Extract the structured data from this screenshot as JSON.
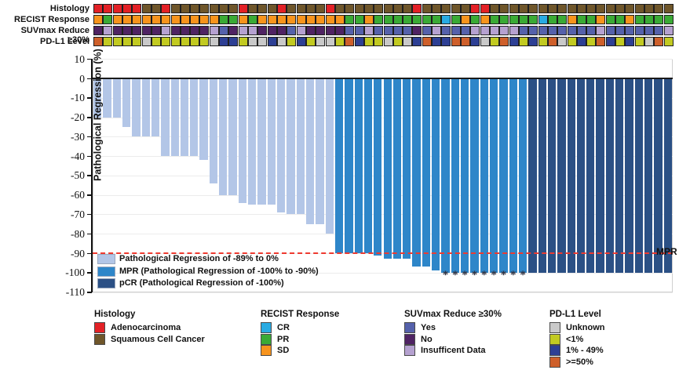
{
  "tracks": {
    "labels": [
      "Histology",
      "RECIST Response",
      "SUVmax Reduce ≥30%",
      "PD-L1 Level"
    ],
    "palette": {
      "A": "#e32126",
      "S": "#6f562a",
      "SD": "#f7941d",
      "PR": "#3aaa35",
      "CR": "#29abe2",
      "Y": "#5561ab",
      "N": "#4f2363",
      "I": "#b5a1d0",
      "U": "#c9c9c9",
      "L1": "#c2ca21",
      "M": "#2d3f94",
      "H": "#ce5f2a"
    },
    "rows": [
      {
        "label": "Histology",
        "cells": [
          "A",
          "A",
          "A",
          "A",
          "A",
          "S",
          "S",
          "A",
          "S",
          "S",
          "S",
          "S",
          "S",
          "S",
          "S",
          "A",
          "S",
          "S",
          "S",
          "A",
          "S",
          "S",
          "S",
          "S",
          "A",
          "S",
          "S",
          "S",
          "S",
          "S",
          "S",
          "S",
          "S",
          "A",
          "S",
          "S",
          "S",
          "S",
          "S",
          "A",
          "A",
          "S",
          "S",
          "S",
          "S",
          "S",
          "S",
          "S",
          "S",
          "S",
          "S",
          "S",
          "S",
          "S",
          "S",
          "S",
          "S",
          "S",
          "S",
          "S"
        ]
      },
      {
        "label": "RECIST Response",
        "cells": [
          "SD",
          "PR",
          "SD",
          "SD",
          "SD",
          "SD",
          "SD",
          "SD",
          "SD",
          "SD",
          "SD",
          "SD",
          "SD",
          "PR",
          "PR",
          "SD",
          "PR",
          "SD",
          "SD",
          "SD",
          "SD",
          "SD",
          "SD",
          "SD",
          "SD",
          "SD",
          "PR",
          "PR",
          "SD",
          "PR",
          "PR",
          "PR",
          "PR",
          "PR",
          "PR",
          "PR",
          "CR",
          "PR",
          "SD",
          "PR",
          "SD",
          "PR",
          "PR",
          "PR",
          "PR",
          "PR",
          "CR",
          "PR",
          "PR",
          "SD",
          "PR",
          "PR",
          "SD",
          "PR",
          "PR",
          "SD",
          "PR",
          "PR",
          "PR",
          "PR"
        ]
      },
      {
        "label": "SUVmax Reduce ≥30%",
        "cells": [
          "N",
          "I",
          "N",
          "N",
          "N",
          "N",
          "N",
          "I",
          "N",
          "N",
          "N",
          "N",
          "I",
          "Y",
          "N",
          "I",
          "I",
          "N",
          "N",
          "N",
          "Y",
          "I",
          "N",
          "N",
          "N",
          "N",
          "Y",
          "Y",
          "I",
          "Y",
          "Y",
          "Y",
          "Y",
          "N",
          "Y",
          "I",
          "Y",
          "Y",
          "Y",
          "I",
          "I",
          "I",
          "I",
          "I",
          "Y",
          "Y",
          "Y",
          "Y",
          "Y",
          "Y",
          "Y",
          "Y",
          "I",
          "Y",
          "Y",
          "Y",
          "Y",
          "Y",
          "Y",
          "I"
        ]
      },
      {
        "label": "PD-L1 Level",
        "cells": [
          "H",
          "L1",
          "L1",
          "L1",
          "L1",
          "U",
          "L1",
          "L1",
          "L1",
          "L1",
          "L1",
          "L1",
          "U",
          "M",
          "M",
          "L1",
          "U",
          "U",
          "M",
          "U",
          "L1",
          "M",
          "L1",
          "U",
          "U",
          "L1",
          "H",
          "M",
          "L1",
          "L1",
          "U",
          "L1",
          "U",
          "M",
          "H",
          "M",
          "M",
          "H",
          "H",
          "M",
          "U",
          "L1",
          "H",
          "M",
          "L1",
          "M",
          "L1",
          "H",
          "U",
          "L1",
          "M",
          "L1",
          "H",
          "M",
          "L1",
          "M",
          "L1",
          "U",
          "H",
          "L1"
        ]
      }
    ]
  },
  "chart_data": {
    "type": "bar",
    "title": "",
    "xlabel": "",
    "ylabel": "Pathological Regression (%)",
    "ylim": [
      -110,
      10
    ],
    "yticks": [
      10,
      0,
      -10,
      -20,
      -30,
      -40,
      -50,
      -60,
      -70,
      -80,
      -90,
      -100,
      -110
    ],
    "n_patients": 60,
    "values": [
      -20,
      -20,
      -20,
      -25,
      -30,
      -30,
      -30,
      -40,
      -40,
      -40,
      -40,
      -42,
      -54,
      -60,
      -60,
      -64,
      -65,
      -65,
      -65,
      -69,
      -70,
      -70,
      -75,
      -75,
      -80,
      -90,
      -90,
      -90,
      -90,
      -91,
      -93,
      -93,
      -93,
      -97,
      -97,
      -99,
      -100,
      -100,
      -100,
      -100,
      -100,
      -100,
      -100,
      -100,
      -100,
      -100,
      -100,
      -100,
      -100,
      -100,
      -100,
      -100,
      -100,
      -100,
      -100,
      -100,
      -100,
      -100,
      -100,
      -100
    ],
    "groups": [
      "regression",
      "regression",
      "regression",
      "regression",
      "regression",
      "regression",
      "regression",
      "regression",
      "regression",
      "regression",
      "regression",
      "regression",
      "regression",
      "regression",
      "regression",
      "regression",
      "regression",
      "regression",
      "regression",
      "regression",
      "regression",
      "regression",
      "regression",
      "regression",
      "regression",
      "mpr",
      "mpr",
      "mpr",
      "mpr",
      "mpr",
      "mpr",
      "mpr",
      "mpr",
      "mpr",
      "mpr",
      "mpr",
      "mpr",
      "mpr",
      "mpr",
      "mpr",
      "mpr",
      "mpr",
      "mpr",
      "mpr",
      "mpr",
      "pcr",
      "pcr",
      "pcr",
      "pcr",
      "pcr",
      "pcr",
      "pcr",
      "pcr",
      "pcr",
      "pcr",
      "pcr",
      "pcr",
      "pcr",
      "pcr",
      "pcr"
    ],
    "series_colors": {
      "regression": "#b3c6e7",
      "mpr": "#2e86c9",
      "pcr": "#2b5085"
    },
    "asterisk_bars": [
      37,
      38,
      39,
      40,
      41,
      42,
      43,
      44,
      45
    ],
    "asterisk_symbol": "*",
    "reference_line": {
      "value": -90,
      "label": "MPR",
      "color": "#ee3a30",
      "style": "dashed"
    },
    "legend_position": "lower-left-inside",
    "grid": true
  },
  "plot_legend": {
    "items": [
      {
        "key": "regression",
        "label": "Pathological Regression of -89% to 0%"
      },
      {
        "key": "mpr",
        "label": "MPR (Pathological Regression of -100% to -90%)"
      },
      {
        "key": "pcr",
        "label": "pCR (Pathological Regression of -100%)"
      }
    ]
  },
  "bottom_legends": [
    {
      "title": "Histology",
      "items": [
        {
          "label": "Adenocarcinoma",
          "color": "#e32126"
        },
        {
          "label": "Squamous Cell Cancer",
          "color": "#6f562a"
        }
      ]
    },
    {
      "title": "RECIST Response",
      "items": [
        {
          "label": "CR",
          "color": "#29abe2"
        },
        {
          "label": "PR",
          "color": "#3aaa35"
        },
        {
          "label": "SD",
          "color": "#f7941d"
        }
      ]
    },
    {
      "title": "SUVmax Reduce ≥30%",
      "items": [
        {
          "label": "Yes",
          "color": "#5561ab"
        },
        {
          "label": "No",
          "color": "#4f2363"
        },
        {
          "label": "Insufficent Data",
          "color": "#b5a1d0"
        }
      ]
    },
    {
      "title": "PD-L1 Level",
      "items": [
        {
          "label": "Unknown",
          "color": "#c9c9c9"
        },
        {
          "label": "<1%",
          "color": "#c2ca21"
        },
        {
          "label": "1% - 49%",
          "color": "#2d3f94"
        },
        {
          "label": ">=50%",
          "color": "#ce5f2a"
        }
      ]
    }
  ]
}
